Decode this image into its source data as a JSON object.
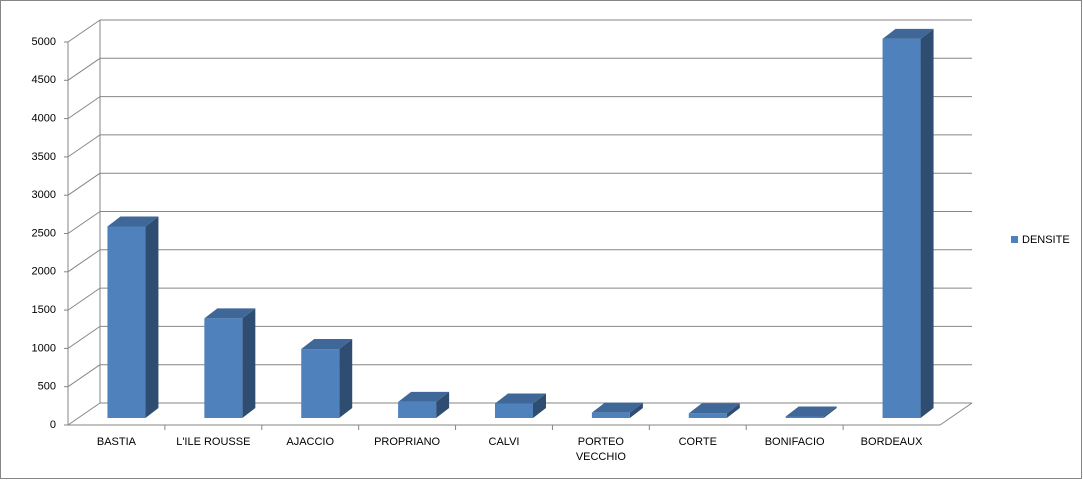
{
  "chart_data": {
    "type": "bar",
    "categories": [
      "BASTIA",
      "L'ILE ROUSSE",
      "AJACCIO",
      "PROPRIANO",
      "CALVI",
      "PORTEO VECCHIO",
      "CORTE",
      "BONIFACIO",
      "BORDEAUX"
    ],
    "series": [
      {
        "name": "DENSITE",
        "color": "#4f81bd",
        "values": [
          2500,
          1300,
          900,
          210,
          190,
          70,
          60,
          20,
          4950
        ]
      }
    ],
    "ylim": [
      0,
      5000
    ],
    "yticks": [
      0,
      500,
      1000,
      1500,
      2000,
      2500,
      3000,
      3500,
      4000,
      4500,
      5000
    ],
    "grid": true,
    "legend": "right"
  }
}
